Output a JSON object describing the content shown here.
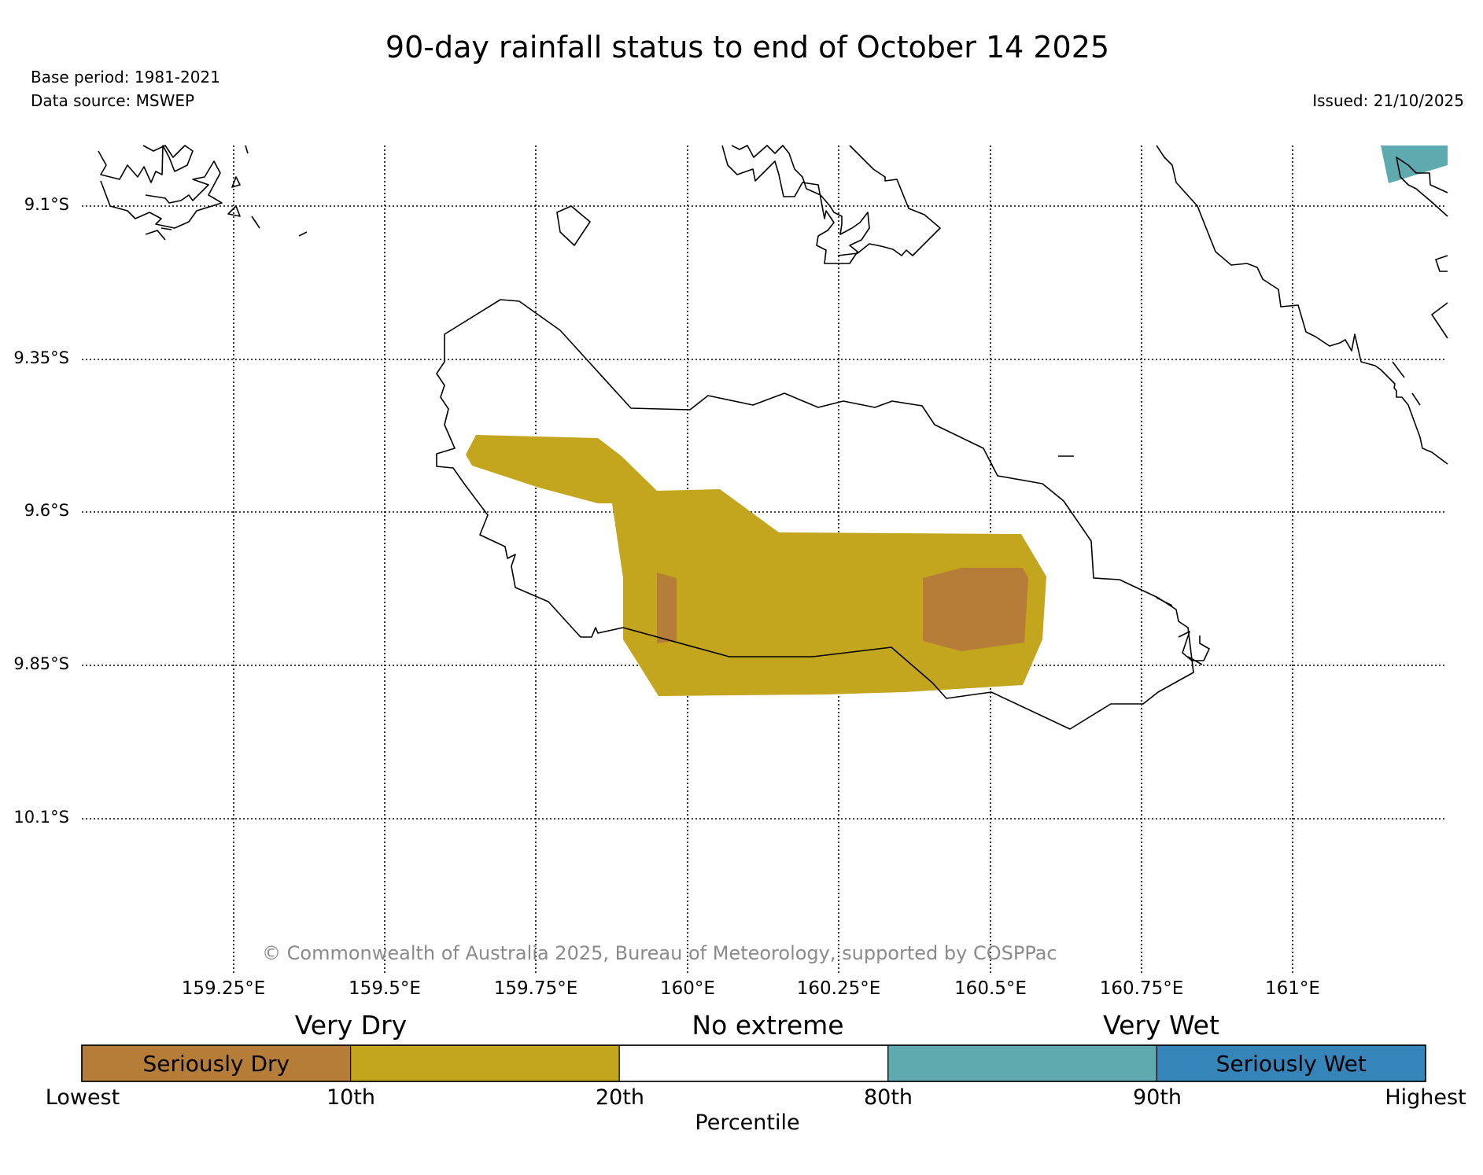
{
  "title": "90-day rainfall status to end of October 14 2025",
  "base_period": "Base period: 1981-2021",
  "data_source": "Data source: MSWEP",
  "issued": "Issued: 21/10/2025",
  "map": {
    "lat_labels": [
      "9.1°S",
      "9.35°S",
      "9.6°S",
      "9.85°S",
      "10.1°S"
    ],
    "lon_labels": [
      "159.25°E",
      "159.5°E",
      "159.75°E",
      "160°E",
      "160.25°E",
      "160.5°E",
      "160.75°E",
      "161°E"
    ],
    "copyright": "© Commonwealth of Australia 2025, Bureau of Meteorology, supported by COSPPac"
  },
  "legend": {
    "headings": [
      "Very Dry",
      "No extreme",
      "Very Wet"
    ],
    "segments": [
      {
        "label": "Seriously Dry",
        "color": "#b57d38"
      },
      {
        "label": "",
        "color": "#c3a51e"
      },
      {
        "label": "",
        "color": "#ffffff"
      },
      {
        "label": "",
        "color": "#5eaaaf"
      },
      {
        "label": "Seriously Wet",
        "color": "#3584ba"
      }
    ],
    "ticks": [
      "Lowest",
      "10th",
      "20th",
      "80th",
      "90th",
      "Highest"
    ],
    "axis_label": "Percentile"
  }
}
